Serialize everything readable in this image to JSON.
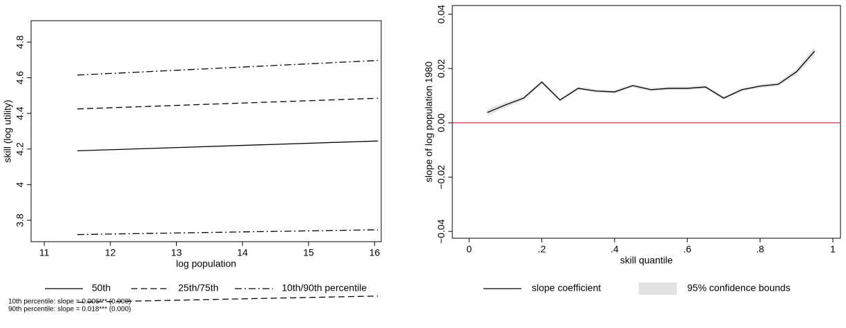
{
  "chart_data": [
    {
      "type": "line",
      "x_label": "log population",
      "y_label": "skill (log utility)",
      "x": [
        11.5,
        16.05
      ],
      "series": [
        {
          "name": "50th",
          "color": "#000000",
          "dash": "solid",
          "lines": [
            [
              4.19,
              4.245
            ]
          ]
        },
        {
          "name": "25th/75th",
          "color": "#000000",
          "dash": "dashed",
          "lines": [
            [
              3.34,
              3.375
            ],
            [
              4.425,
              4.485
            ]
          ]
        },
        {
          "name": "10th/90th percentile",
          "color": "#000000",
          "dash": "dashdot",
          "lines": [
            [
              3.72,
              3.747
            ],
            [
              4.615,
              4.697
            ]
          ]
        }
      ],
      "xlim": [
        10.8,
        16.1
      ],
      "xticks": [
        11,
        12,
        13,
        14,
        15,
        16
      ],
      "ylim": [
        3.68,
        4.92
      ],
      "yticks": [
        3.8,
        4,
        4.2,
        4.4,
        4.6,
        4.8
      ],
      "grid": false,
      "notes": [
        "10th percentile: slope = 0.006*** (0.000)",
        "90th percentile: slope = 0.018*** (0.000)"
      ]
    },
    {
      "type": "band-line",
      "x_label": "skill quantile",
      "y_label": "slope of log population 1980",
      "x": [
        0.05,
        0.1,
        0.15,
        0.2,
        0.25,
        0.3,
        0.35,
        0.4,
        0.45,
        0.5,
        0.55,
        0.6,
        0.65,
        0.7,
        0.75,
        0.8,
        0.85,
        0.9,
        0.95
      ],
      "series": [
        {
          "name": "slope coefficient",
          "color": "#000000",
          "values": [
            0.0038,
            0.0066,
            0.0091,
            0.015,
            0.0084,
            0.0127,
            0.0117,
            0.0114,
            0.0137,
            0.0122,
            0.0127,
            0.0127,
            0.0132,
            0.0091,
            0.0122,
            0.0135,
            0.0142,
            0.0188,
            0.0264
          ]
        }
      ],
      "band": {
        "name": "95% confidence bounds",
        "color": "#e2e2e2",
        "lower": [
          0.0026,
          0.0057,
          0.0083,
          0.0143,
          0.0078,
          0.0121,
          0.0111,
          0.0108,
          0.0131,
          0.0116,
          0.0121,
          0.0121,
          0.0126,
          0.0085,
          0.0116,
          0.0129,
          0.0135,
          0.0178,
          0.0248
        ],
        "upper": [
          0.005,
          0.0075,
          0.0099,
          0.0157,
          0.009,
          0.0133,
          0.0123,
          0.012,
          0.0143,
          0.0128,
          0.0133,
          0.0133,
          0.0138,
          0.0097,
          0.0128,
          0.0141,
          0.0149,
          0.0198,
          0.028
        ]
      },
      "hline": 0,
      "hline_color": "#c0334d",
      "xlim": [
        -0.046,
        1.021
      ],
      "xticks": [
        0,
        {
          "value": 0.2,
          "label": ".2"
        },
        {
          "value": 0.4,
          "label": ".4"
        },
        {
          "value": 0.6,
          "label": ".6"
        },
        {
          "value": 0.8,
          "label": ".8"
        },
        1
      ],
      "ylim": [
        -0.0425,
        0.0432
      ],
      "yticks": [
        {
          "value": -0.04,
          "label": "−0.04"
        },
        {
          "value": -0.02,
          "label": "−0.02"
        },
        {
          "value": 0,
          "label": "0.00"
        },
        {
          "value": 0.02,
          "label": "0.02"
        },
        {
          "value": 0.04,
          "label": "0.04"
        }
      ],
      "grid": false
    }
  ]
}
